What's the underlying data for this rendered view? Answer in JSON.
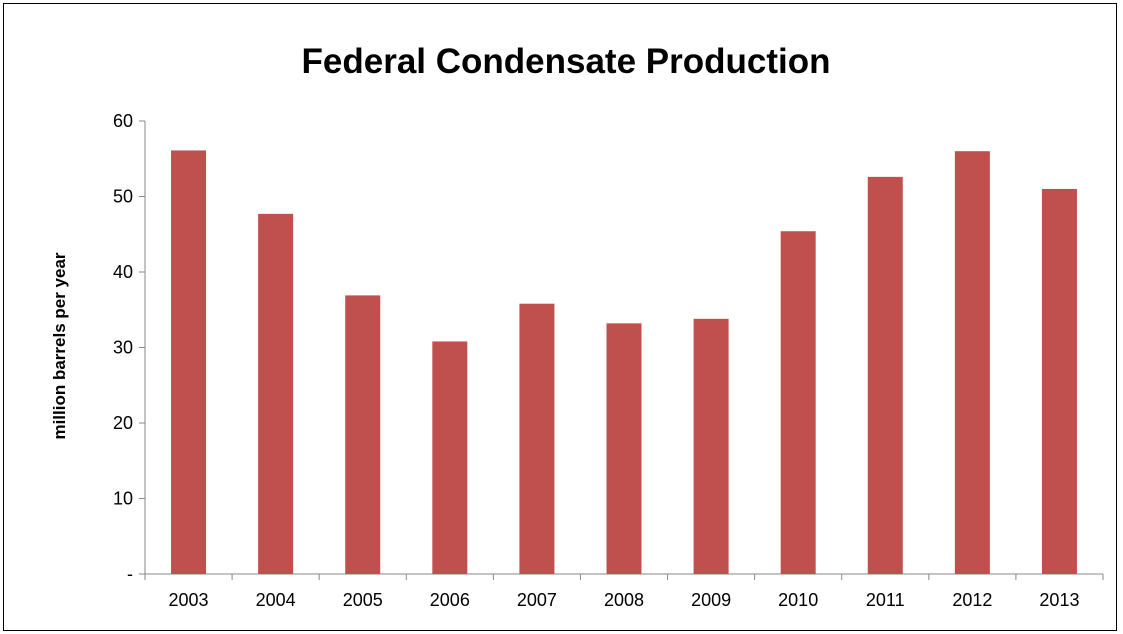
{
  "chart_data": {
    "type": "bar",
    "title": "Federal Condensate Production",
    "xlabel": "",
    "ylabel": "million barrels per year",
    "categories": [
      "2003",
      "2004",
      "2005",
      "2006",
      "2007",
      "2008",
      "2009",
      "2010",
      "2011",
      "2012",
      "2013"
    ],
    "values": [
      56.1,
      47.7,
      36.9,
      30.8,
      35.8,
      33.2,
      33.8,
      45.4,
      52.6,
      56.0,
      51.0
    ],
    "ylim": [
      0,
      60
    ],
    "yticks": [
      {
        "value": 0,
        "label": "-"
      },
      {
        "value": 10,
        "label": "10"
      },
      {
        "value": 20,
        "label": "20"
      },
      {
        "value": 30,
        "label": "30"
      },
      {
        "value": 40,
        "label": "40"
      },
      {
        "value": 50,
        "label": "50"
      },
      {
        "value": 60,
        "label": "60"
      }
    ],
    "bar_color": "#c0504d",
    "grid": false,
    "legend": "none"
  }
}
